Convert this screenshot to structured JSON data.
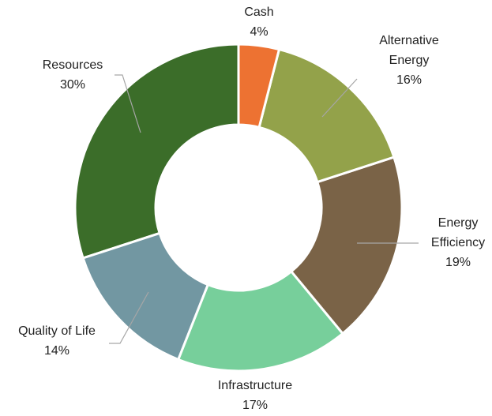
{
  "chart_data": {
    "type": "donut",
    "categories": [
      "Cash",
      "Alternative Energy",
      "Energy Efficiency",
      "Infrastructure",
      "Quality of Life",
      "Resources"
    ],
    "values": [
      4,
      16,
      19,
      17,
      14,
      30
    ],
    "value_labels": [
      "4%",
      "16%",
      "19%",
      "17%",
      "14%",
      "30%"
    ],
    "colors": [
      "#ed7232",
      "#93a24a",
      "#7a6347",
      "#77cf9b",
      "#7297a2",
      "#3b6d29"
    ]
  }
}
